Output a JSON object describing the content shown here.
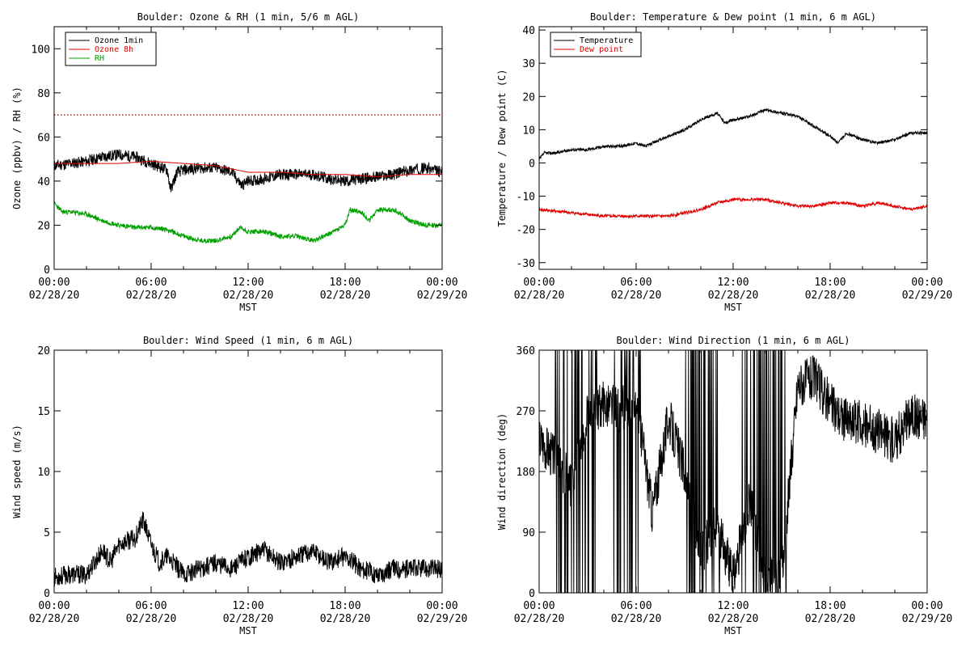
{
  "page": {
    "background": "#ffffff"
  },
  "chart_data": [
    {
      "id": "ozone_rh",
      "type": "line",
      "title": "Boulder: Ozone & RH (1 min, 5/6 m AGL)",
      "xlabel": "MST",
      "ylabel": "Ozone (ppbv) / RH (%)",
      "xlim": [
        0,
        24
      ],
      "ylim": [
        0,
        110
      ],
      "yticks": [
        0,
        20,
        40,
        60,
        80,
        100
      ],
      "xtick_labels": [
        [
          "00:00",
          "02/28/20"
        ],
        [
          "06:00",
          "02/28/20"
        ],
        [
          "12:00",
          "02/28/20"
        ],
        [
          "18:00",
          "02/28/20"
        ],
        [
          "00:00",
          "02/29/20"
        ]
      ],
      "legend_position": "top-left",
      "series": [
        {
          "name": "Ozone 1min",
          "color": "#000000",
          "noise": 2.6,
          "seed": 11,
          "points": [
            [
              0,
              47
            ],
            [
              1,
              48
            ],
            [
              2,
              49
            ],
            [
              3,
              51
            ],
            [
              4,
              52
            ],
            [
              5,
              51
            ],
            [
              6,
              48
            ],
            [
              7,
              45
            ],
            [
              7.2,
              36
            ],
            [
              7.6,
              44
            ],
            [
              8,
              45
            ],
            [
              9,
              46
            ],
            [
              10,
              46
            ],
            [
              11,
              44
            ],
            [
              11.6,
              38
            ],
            [
              12,
              40
            ],
            [
              13,
              41
            ],
            [
              14,
              43
            ],
            [
              15,
              43
            ],
            [
              16,
              43
            ],
            [
              17,
              41
            ],
            [
              18,
              40
            ],
            [
              19,
              41
            ],
            [
              20,
              42
            ],
            [
              21,
              43
            ],
            [
              22,
              45
            ],
            [
              23,
              46
            ],
            [
              24,
              44
            ]
          ]
        },
        {
          "name": "Ozone 8h",
          "color": "#e00000",
          "noise": 0,
          "seed": 0,
          "points": [
            [
              0,
              48
            ],
            [
              2,
              48
            ],
            [
              4,
              48
            ],
            [
              6,
              49
            ],
            [
              8,
              48
            ],
            [
              10,
              47
            ],
            [
              12,
              44
            ],
            [
              14,
              44
            ],
            [
              16,
              43
            ],
            [
              18,
              43
            ],
            [
              20,
              42
            ],
            [
              22,
              43
            ],
            [
              24,
              43
            ]
          ]
        },
        {
          "name": "RH",
          "color": "#00a000",
          "noise": 1.1,
          "seed": 23,
          "points": [
            [
              0,
              30
            ],
            [
              0.5,
              26
            ],
            [
              1,
              26
            ],
            [
              2,
              25
            ],
            [
              3,
              22
            ],
            [
              4,
              20
            ],
            [
              5,
              19
            ],
            [
              6,
              19
            ],
            [
              7,
              18
            ],
            [
              8,
              15
            ],
            [
              9,
              13
            ],
            [
              10,
              13
            ],
            [
              11,
              15
            ],
            [
              11.5,
              19
            ],
            [
              12,
              17
            ],
            [
              13,
              17
            ],
            [
              14,
              15
            ],
            [
              15,
              15
            ],
            [
              16,
              13
            ],
            [
              17,
              16
            ],
            [
              18,
              20
            ],
            [
              18.3,
              27
            ],
            [
              19,
              26
            ],
            [
              19.5,
              22
            ],
            [
              20,
              27
            ],
            [
              21,
              27
            ],
            [
              21.5,
              25
            ],
            [
              22,
              22
            ],
            [
              23,
              20
            ],
            [
              24,
              20
            ]
          ]
        }
      ],
      "reference_lines": [
        {
          "y": 70,
          "color": "#e00000",
          "style": "dotted"
        }
      ]
    },
    {
      "id": "temp_dew",
      "type": "line",
      "title": "Boulder: Temperature & Dew point (1 min, 6 m AGL)",
      "xlabel": "MST",
      "ylabel": "Temperature / Dew point (C)",
      "xlim": [
        0,
        24
      ],
      "ylim": [
        -32,
        41
      ],
      "yticks": [
        -30,
        -20,
        -10,
        0,
        10,
        20,
        30,
        40
      ],
      "xtick_labels": [
        [
          "00:00",
          "02/28/20"
        ],
        [
          "06:00",
          "02/28/20"
        ],
        [
          "12:00",
          "02/28/20"
        ],
        [
          "18:00",
          "02/28/20"
        ],
        [
          "00:00",
          "02/29/20"
        ]
      ],
      "legend_position": "top-left",
      "series": [
        {
          "name": "Temperature",
          "color": "#000000",
          "noise": 0.45,
          "seed": 37,
          "points": [
            [
              0,
              1
            ],
            [
              0.3,
              3
            ],
            [
              1,
              3
            ],
            [
              2,
              4
            ],
            [
              3,
              4
            ],
            [
              4,
              5
            ],
            [
              5,
              5
            ],
            [
              6,
              6
            ],
            [
              6.6,
              5
            ],
            [
              7,
              6
            ],
            [
              8,
              8
            ],
            [
              9,
              10
            ],
            [
              10,
              13
            ],
            [
              11,
              15
            ],
            [
              11.5,
              12
            ],
            [
              12,
              13
            ],
            [
              13,
              14
            ],
            [
              14,
              16
            ],
            [
              15,
              15
            ],
            [
              16,
              14
            ],
            [
              17,
              11
            ],
            [
              18,
              8
            ],
            [
              18.5,
              6
            ],
            [
              19,
              9
            ],
            [
              20,
              7
            ],
            [
              21,
              6
            ],
            [
              22,
              7
            ],
            [
              23,
              9
            ],
            [
              24,
              9
            ]
          ]
        },
        {
          "name": "Dew point",
          "color": "#e00000",
          "noise": 0.45,
          "seed": 41,
          "points": [
            [
              0,
              -14
            ],
            [
              2,
              -15
            ],
            [
              4,
              -16
            ],
            [
              6,
              -16
            ],
            [
              7,
              -16
            ],
            [
              8,
              -16
            ],
            [
              9,
              -15
            ],
            [
              10,
              -14
            ],
            [
              11,
              -12
            ],
            [
              12,
              -11
            ],
            [
              13,
              -11
            ],
            [
              14,
              -11
            ],
            [
              15,
              -12
            ],
            [
              16,
              -13
            ],
            [
              17,
              -13
            ],
            [
              18,
              -12
            ],
            [
              19,
              -12
            ],
            [
              20,
              -13
            ],
            [
              21,
              -12
            ],
            [
              22,
              -13
            ],
            [
              23,
              -14
            ],
            [
              24,
              -13
            ]
          ]
        }
      ]
    },
    {
      "id": "wind_speed",
      "type": "line",
      "title": "Boulder: Wind Speed (1 min, 6 m AGL)",
      "xlabel": "MST",
      "ylabel": "Wind speed (m/s)",
      "xlim": [
        0,
        24
      ],
      "ylim": [
        0,
        20
      ],
      "yticks": [
        0,
        5,
        10,
        15,
        20
      ],
      "xtick_labels": [
        [
          "00:00",
          "02/28/20"
        ],
        [
          "06:00",
          "02/28/20"
        ],
        [
          "12:00",
          "02/28/20"
        ],
        [
          "18:00",
          "02/28/20"
        ],
        [
          "00:00",
          "02/29/20"
        ]
      ],
      "series": [
        {
          "name": "",
          "color": "#000000",
          "noise": 0.8,
          "seed": 53,
          "points": [
            [
              0,
              1.3
            ],
            [
              1,
              1.5
            ],
            [
              2,
              1.5
            ],
            [
              2.5,
              2.5
            ],
            [
              3,
              3.5
            ],
            [
              3.5,
              2.5
            ],
            [
              4,
              4
            ],
            [
              5,
              4.5
            ],
            [
              5.5,
              6
            ],
            [
              6,
              4
            ],
            [
              6.5,
              2.5
            ],
            [
              7,
              3
            ],
            [
              8,
              1.5
            ],
            [
              9,
              2
            ],
            [
              10,
              2.5
            ],
            [
              11,
              2
            ],
            [
              12,
              3
            ],
            [
              13,
              3.5
            ],
            [
              14,
              2.5
            ],
            [
              15,
              3
            ],
            [
              16,
              3.5
            ],
            [
              17,
              2.5
            ],
            [
              18,
              3
            ],
            [
              19,
              2
            ],
            [
              20,
              1.5
            ],
            [
              21,
              2
            ],
            [
              22,
              2
            ],
            [
              23,
              2
            ],
            [
              24,
              2
            ]
          ]
        }
      ]
    },
    {
      "id": "wind_dir",
      "type": "line",
      "title": "Boulder: Wind Direction (1 min, 6 m AGL)",
      "xlabel": "MST",
      "ylabel": "Wind direction (deg)",
      "xlim": [
        0,
        24
      ],
      "ylim": [
        0,
        360
      ],
      "yticks": [
        0,
        90,
        180,
        270,
        360
      ],
      "xtick_labels": [
        [
          "00:00",
          "02/28/20"
        ],
        [
          "06:00",
          "02/28/20"
        ],
        [
          "12:00",
          "02/28/20"
        ],
        [
          "18:00",
          "02/28/20"
        ],
        [
          "00:00",
          "02/29/20"
        ]
      ],
      "series": [
        {
          "name": "",
          "color": "#000000",
          "noise": 35,
          "seed": 67,
          "points": [
            [
              0,
              230
            ],
            [
              1,
              200
            ],
            [
              2,
              160
            ],
            [
              3,
              270
            ],
            [
              4,
              280
            ],
            [
              5,
              270
            ],
            [
              6,
              290
            ],
            [
              7,
              120
            ],
            [
              8,
              260
            ],
            [
              9,
              180
            ],
            [
              10,
              60
            ],
            [
              11,
              100
            ],
            [
              12,
              20
            ],
            [
              13,
              140
            ],
            [
              14,
              20
            ],
            [
              15,
              20
            ],
            [
              16,
              310
            ],
            [
              17,
              320
            ],
            [
              18,
              280
            ],
            [
              19,
              255
            ],
            [
              20,
              250
            ],
            [
              21,
              240
            ],
            [
              22,
              225
            ],
            [
              23,
              265
            ],
            [
              24,
              260
            ]
          ],
          "spike_hours": [
            [
              1,
              3.6
            ],
            [
              4.5,
              6.3
            ],
            [
              9,
              11.2
            ],
            [
              12.5,
              15.3
            ]
          ]
        }
      ]
    }
  ]
}
